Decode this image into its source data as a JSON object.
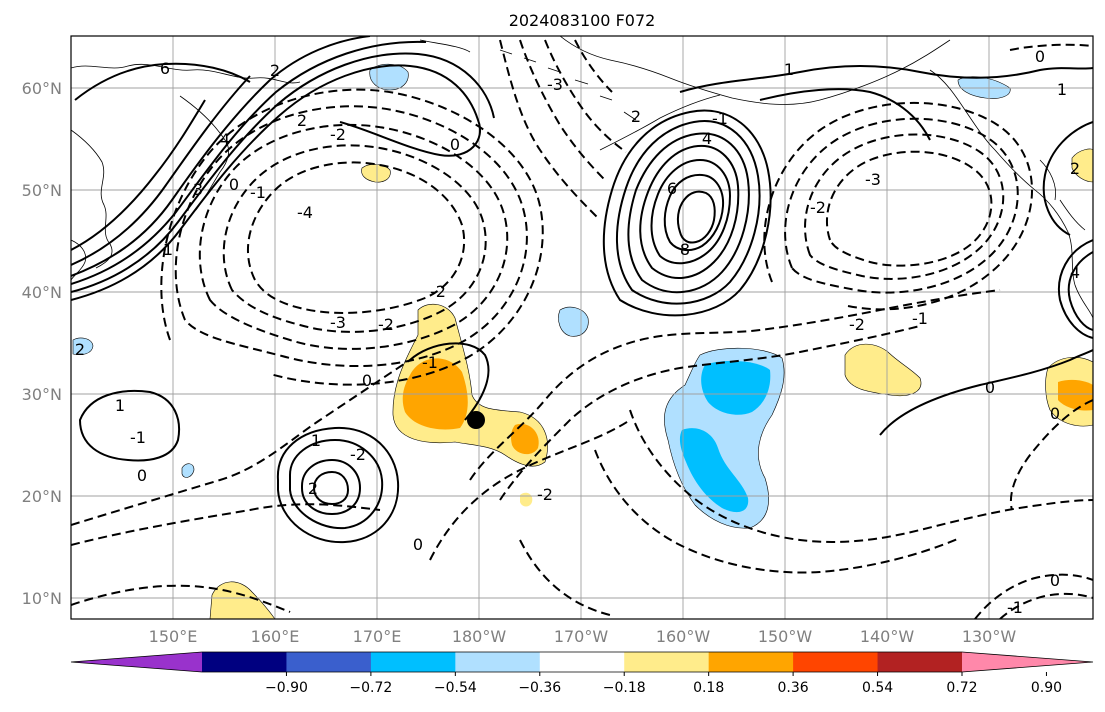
{
  "title": "2024083100 F072",
  "map": {
    "lat_ticks": [
      "60°N",
      "50°N",
      "40°N",
      "30°N",
      "20°N",
      "10°N"
    ],
    "lon_ticks": [
      "150°E",
      "160°E",
      "170°E",
      "180°W",
      "170°W",
      "160°W",
      "150°W",
      "140°W",
      "130°W"
    ],
    "axis_label_color": "#808080",
    "grid": true
  },
  "colorbar": {
    "colors": [
      "#9932cc",
      "#000080",
      "#3a5fcd",
      "#00bfff",
      "#b0e0ff",
      "#ffffff",
      "#ffec8b",
      "#ffa500",
      "#ff4500",
      "#b22222",
      "#ff88aa"
    ],
    "tick_labels": [
      "−0.90",
      "−0.72",
      "−0.54",
      "−0.36",
      "−0.18",
      "0.18",
      "0.36",
      "0.54",
      "0.72",
      "0.90"
    ]
  },
  "contour_labels": [
    {
      "text": "6"
    },
    {
      "text": "2"
    },
    {
      "text": "4"
    },
    {
      "text": "3"
    },
    {
      "text": "0"
    },
    {
      "text": "1"
    },
    {
      "text": "-2"
    },
    {
      "text": "-1"
    },
    {
      "text": "2"
    },
    {
      "text": "0"
    },
    {
      "text": "-4"
    },
    {
      "text": "-3"
    },
    {
      "text": "-2"
    },
    {
      "text": "-2"
    },
    {
      "text": "-1"
    },
    {
      "text": "0"
    },
    {
      "text": "1"
    },
    {
      "text": "-2"
    },
    {
      "text": "2"
    },
    {
      "text": "1"
    },
    {
      "text": "0"
    },
    {
      "text": "-1"
    },
    {
      "text": "2"
    },
    {
      "text": "-2"
    },
    {
      "text": "0"
    },
    {
      "text": "1"
    },
    {
      "text": "-1"
    },
    {
      "text": "4"
    },
    {
      "text": "6"
    },
    {
      "text": "8"
    },
    {
      "text": "-3"
    },
    {
      "text": "-2"
    },
    {
      "text": "-2"
    },
    {
      "text": "-1"
    },
    {
      "text": "0"
    },
    {
      "text": "0"
    },
    {
      "text": "1"
    },
    {
      "text": "2"
    },
    {
      "text": "0"
    },
    {
      "text": "-1"
    },
    {
      "text": "0"
    },
    {
      "text": "-3"
    },
    {
      "text": "4"
    },
    {
      "text": "2"
    }
  ]
}
